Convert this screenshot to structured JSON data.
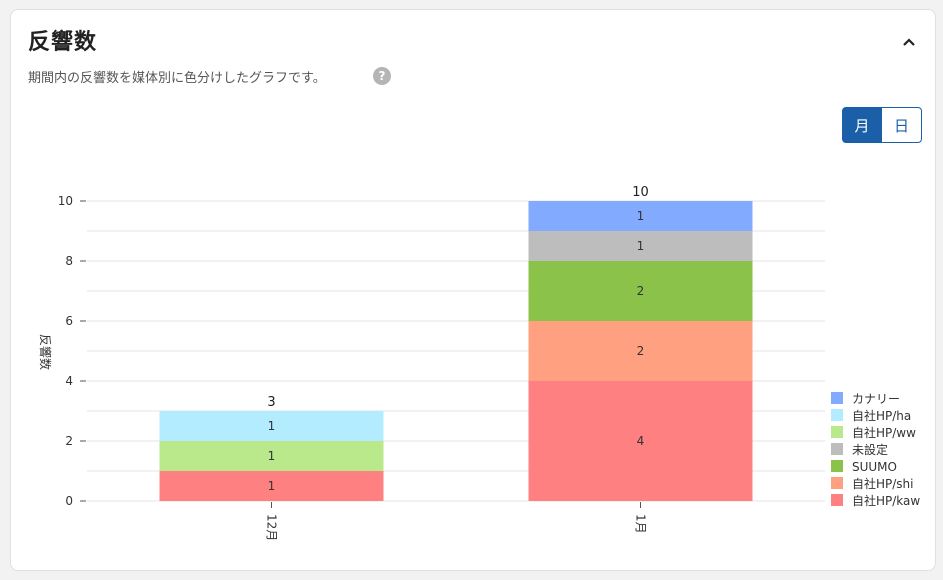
{
  "header": {
    "title": "反響数",
    "subtitle": "期間内の反響数を媒体別に色分けしたグラフです。"
  },
  "toggle": {
    "month_label": "月",
    "day_label": "日",
    "selected": "月"
  },
  "chart_data": {
    "type": "bar",
    "stacked": true,
    "categories": [
      "12月",
      "1月"
    ],
    "ylabel": "反響数",
    "ylim": [
      0,
      10
    ],
    "yticks": [
      0,
      2,
      4,
      6,
      8,
      10
    ],
    "grid": true,
    "legend_position": "right",
    "series": [
      {
        "name": "自社HP/kaw",
        "color": "#ff8080",
        "values": [
          1,
          4
        ]
      },
      {
        "name": "自社HP/shi",
        "color": "#ffa080",
        "values": [
          0,
          2
        ]
      },
      {
        "name": "SUUMO",
        "color": "#8bc34a",
        "values": [
          0,
          2
        ]
      },
      {
        "name": "未設定",
        "color": "#bdbdbd",
        "values": [
          0,
          1
        ]
      },
      {
        "name": "自社HP/ww",
        "color": "#b9e98b",
        "values": [
          1,
          0
        ]
      },
      {
        "name": "自社HP/ha",
        "color": "#b3ebff",
        "values": [
          1,
          0
        ]
      },
      {
        "name": "カナリー",
        "color": "#82aaff",
        "values": [
          0,
          1
        ]
      }
    ],
    "legend_order": [
      "カナリー",
      "自社HP/ha",
      "自社HP/ww",
      "未設定",
      "SUUMO",
      "自社HP/shi",
      "自社HP/kaw"
    ],
    "totals": [
      3,
      10
    ]
  }
}
